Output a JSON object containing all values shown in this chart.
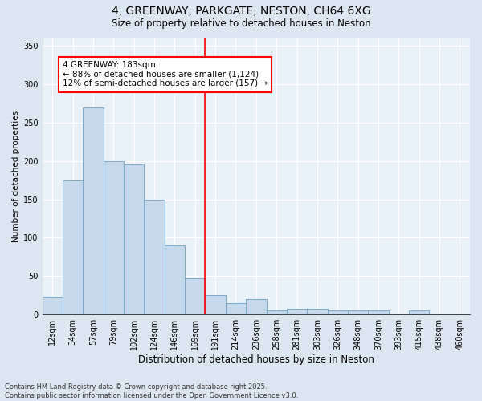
{
  "title": "4, GREENWAY, PARKGATE, NESTON, CH64 6XG",
  "subtitle": "Size of property relative to detached houses in Neston",
  "xlabel": "Distribution of detached houses by size in Neston",
  "ylabel": "Number of detached properties",
  "categories": [
    "12sqm",
    "34sqm",
    "57sqm",
    "79sqm",
    "102sqm",
    "124sqm",
    "146sqm",
    "169sqm",
    "191sqm",
    "214sqm",
    "236sqm",
    "258sqm",
    "281sqm",
    "303sqm",
    "326sqm",
    "348sqm",
    "370sqm",
    "393sqm",
    "415sqm",
    "438sqm",
    "460sqm"
  ],
  "values": [
    23,
    175,
    270,
    200,
    195,
    150,
    90,
    47,
    25,
    15,
    20,
    5,
    8,
    8,
    5,
    5,
    5,
    0,
    5,
    0,
    0
  ],
  "bar_color": "#c6d9ec",
  "bar_edge_color": "#7aaac8",
  "vline_color": "red",
  "annotation_text": "4 GREENWAY: 183sqm\n← 88% of detached houses are smaller (1,124)\n12% of semi-detached houses are larger (157) →",
  "ylim": [
    0,
    360
  ],
  "yticks": [
    0,
    50,
    100,
    150,
    200,
    250,
    300,
    350
  ],
  "footer": "Contains HM Land Registry data © Crown copyright and database right 2025.\nContains public sector information licensed under the Open Government Licence v3.0.",
  "bg_color": "#dce6f0",
  "plot_bg_color": "#e8f0f8",
  "grid_color": "#ffffff",
  "title_fontsize": 10,
  "subtitle_fontsize": 8.5,
  "xlabel_fontsize": 8.5,
  "ylabel_fontsize": 7.5,
  "tick_fontsize": 7,
  "annotation_fontsize": 7.5,
  "footer_fontsize": 6
}
